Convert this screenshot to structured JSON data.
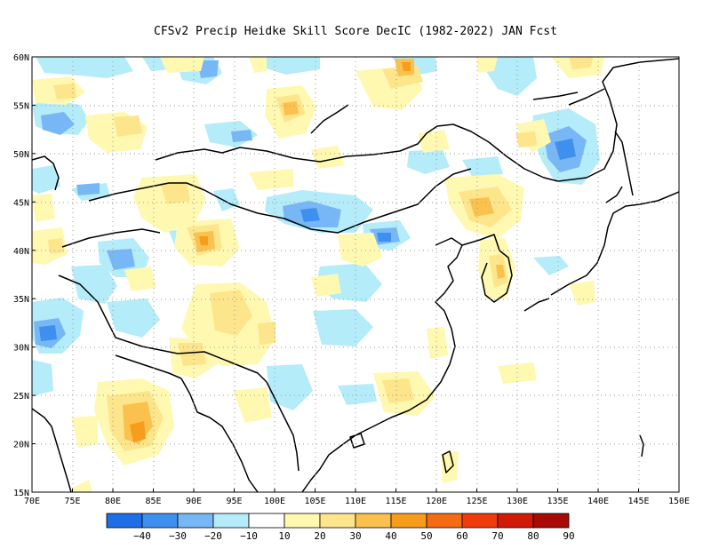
{
  "title": "CFSv2 Precip Heidke Skill Score DecIC (1982-2022) JAN Fcst",
  "lat_labels": [
    "60N",
    "55N",
    "50N",
    "45N",
    "40N",
    "35N",
    "30N",
    "25N",
    "20N",
    "15N"
  ],
  "lon_labels": [
    "70E",
    "75E",
    "80E",
    "85E",
    "90E",
    "95E",
    "100E",
    "105E",
    "110E",
    "115E",
    "120E",
    "125E",
    "130E",
    "135E",
    "140E",
    "145E",
    "150E"
  ],
  "colorbar": {
    "labels": [
      "−40",
      "−30",
      "−20",
      "−10",
      "10",
      "20",
      "30",
      "40",
      "50",
      "60",
      "70",
      "80",
      "90"
    ],
    "colors": [
      "#1e6fe6",
      "#3d8ff0",
      "#78b7f5",
      "#b4ecf9",
      "#ffffff",
      "#fff8b0",
      "#fde58c",
      "#fbc14f",
      "#f79c1c",
      "#f36b12",
      "#ef3a0c",
      "#d21a08",
      "#a80b05"
    ]
  },
  "colors": {
    "coast": "#000000",
    "grid": "#9a9a9a",
    "blue_light": "#b4ecf9",
    "blue_mid": "#78b7f5",
    "blue_dark": "#3d8ff0",
    "yellow_light": "#fff8b0",
    "yellow_mid": "#fde58c",
    "orange": "#fbc14f",
    "deep_orange": "#f79c1c"
  }
}
